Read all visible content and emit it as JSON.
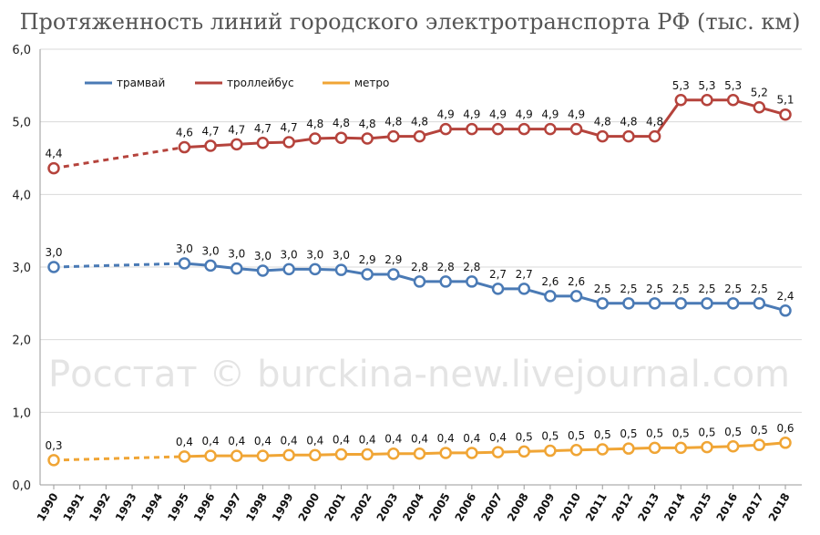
{
  "chart_data": {
    "type": "line",
    "title": "Протяженность линий городского электротранспорта РФ (тыс. км)",
    "watermark": "Росстат © burckina-new.livejournal.com",
    "categories": [
      "1990",
      "1991",
      "1992",
      "1993",
      "1994",
      "1995",
      "1996",
      "1997",
      "1998",
      "1999",
      "2000",
      "2001",
      "2002",
      "2003",
      "2004",
      "2005",
      "2006",
      "2007",
      "2008",
      "2009",
      "2010",
      "2011",
      "2012",
      "2013",
      "2014",
      "2015",
      "2016",
      "2017",
      "2018"
    ],
    "ylim": [
      0,
      6
    ],
    "yticks": [
      "0,0",
      "1,0",
      "2,0",
      "3,0",
      "4,0",
      "5,0",
      "6,0"
    ],
    "grid": true,
    "legend_position": "top-left",
    "dashed_gap_between": [
      "1990",
      "1995"
    ],
    "series": [
      {
        "name": "трамвай",
        "color": "#4a7ab5",
        "values": [
          3.0,
          null,
          null,
          null,
          null,
          3.05,
          3.02,
          2.98,
          2.95,
          2.97,
          2.97,
          2.96,
          2.9,
          2.9,
          2.8,
          2.8,
          2.8,
          2.7,
          2.7,
          2.6,
          2.6,
          2.5,
          2.5,
          2.5,
          2.5,
          2.5,
          2.5,
          2.5,
          2.4
        ],
        "labels": [
          "3,0",
          null,
          null,
          null,
          null,
          "3,0",
          "3,0",
          "3,0",
          "3,0",
          "3,0",
          "3,0",
          "3,0",
          "2,9",
          "2,9",
          "2,8",
          "2,8",
          "2,8",
          "2,7",
          "2,7",
          "2,6",
          "2,6",
          "2,5",
          "2,5",
          "2,5",
          "2,5",
          "2,5",
          "2,5",
          "2,5",
          "2,4"
        ]
      },
      {
        "name": "троллейбус",
        "color": "#b5433c",
        "values": [
          4.36,
          null,
          null,
          null,
          null,
          4.65,
          4.67,
          4.69,
          4.71,
          4.72,
          4.77,
          4.78,
          4.77,
          4.8,
          4.8,
          4.9,
          4.9,
          4.9,
          4.9,
          4.9,
          4.9,
          4.8,
          4.8,
          4.8,
          5.3,
          5.3,
          5.3,
          5.2,
          5.1
        ],
        "labels": [
          "4,4",
          null,
          null,
          null,
          null,
          "4,6",
          "4,7",
          "4,7",
          "4,7",
          "4,7",
          "4,8",
          "4,8",
          "4,8",
          "4,8",
          "4,8",
          "4,9",
          "4,9",
          "4,9",
          "4,9",
          "4,9",
          "4,9",
          "4,8",
          "4,8",
          "4,8",
          "5,3",
          "5,3",
          "5,3",
          "5,2",
          "5,1"
        ]
      },
      {
        "name": "метро",
        "color": "#f0a535",
        "values": [
          0.34,
          null,
          null,
          null,
          null,
          0.39,
          0.4,
          0.4,
          0.4,
          0.41,
          0.41,
          0.42,
          0.42,
          0.43,
          0.43,
          0.44,
          0.44,
          0.45,
          0.46,
          0.47,
          0.48,
          0.49,
          0.5,
          0.51,
          0.51,
          0.52,
          0.53,
          0.55,
          0.58
        ],
        "labels": [
          "0,3",
          null,
          null,
          null,
          null,
          "0,4",
          "0,4",
          "0,4",
          "0,4",
          "0,4",
          "0,4",
          "0,4",
          "0,4",
          "0,4",
          "0,4",
          "0,4",
          "0,4",
          "0,4",
          "0,5",
          "0,5",
          "0,5",
          "0,5",
          "0,5",
          "0,5",
          "0,5",
          "0,5",
          "0,5",
          "0,5",
          "0,6"
        ]
      }
    ]
  }
}
